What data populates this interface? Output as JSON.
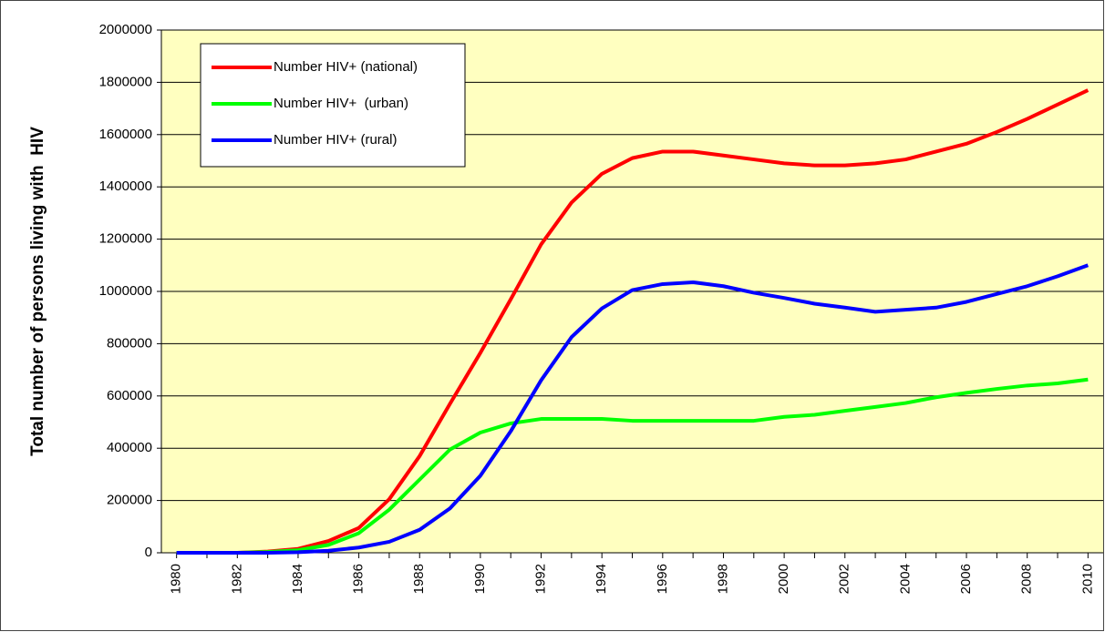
{
  "chart_data": {
    "type": "line",
    "y_label": "Total number of persons living with  HIV",
    "x": [
      1980,
      1981,
      1982,
      1983,
      1984,
      1985,
      1986,
      1987,
      1988,
      1989,
      1990,
      1991,
      1992,
      1993,
      1994,
      1995,
      1996,
      1997,
      1998,
      1999,
      2000,
      2001,
      2002,
      2003,
      2004,
      2005,
      2006,
      2007,
      2008,
      2009,
      2010
    ],
    "xlim": [
      1979.5,
      2010.5
    ],
    "xticks": [
      1980,
      1982,
      1984,
      1986,
      1988,
      1990,
      1992,
      1994,
      1996,
      1998,
      2000,
      2002,
      2004,
      2006,
      2008,
      2010
    ],
    "ylim": [
      0,
      2000000
    ],
    "yticks": [
      0,
      200000,
      400000,
      600000,
      800000,
      1000000,
      1200000,
      1400000,
      1600000,
      1800000,
      2000000
    ],
    "grid": true,
    "legend": "top-left",
    "series": [
      {
        "name": "Number HIV+ (national)",
        "color": "#ff0000",
        "values": [
          0,
          0,
          0,
          5000,
          15000,
          45000,
          95000,
          205000,
          370000,
          570000,
          765000,
          970000,
          1180000,
          1340000,
          1450000,
          1510000,
          1535000,
          1535000,
          1520000,
          1505000,
          1490000,
          1482000,
          1482000,
          1490000,
          1505000,
          1535000,
          1565000,
          1610000,
          1660000,
          1715000,
          1770000
        ]
      },
      {
        "name": "Number HIV+  (urban)",
        "color": "#00ff00",
        "values": [
          0,
          0,
          0,
          3000,
          10000,
          30000,
          75000,
          165000,
          280000,
          395000,
          460000,
          495000,
          512000,
          512000,
          512000,
          505000,
          505000,
          505000,
          505000,
          505000,
          520000,
          528000,
          543000,
          558000,
          573000,
          595000,
          612000,
          627000,
          640000,
          648000,
          663000
        ]
      },
      {
        "name": "Number HIV+ (rural)",
        "color": "#0000ff",
        "values": [
          0,
          0,
          0,
          0,
          2000,
          8000,
          20000,
          42000,
          88000,
          170000,
          295000,
          465000,
          660000,
          825000,
          935000,
          1005000,
          1028000,
          1035000,
          1020000,
          995000,
          975000,
          953000,
          938000,
          922000,
          930000,
          938000,
          960000,
          990000,
          1020000,
          1058000,
          1100000
        ]
      }
    ]
  }
}
